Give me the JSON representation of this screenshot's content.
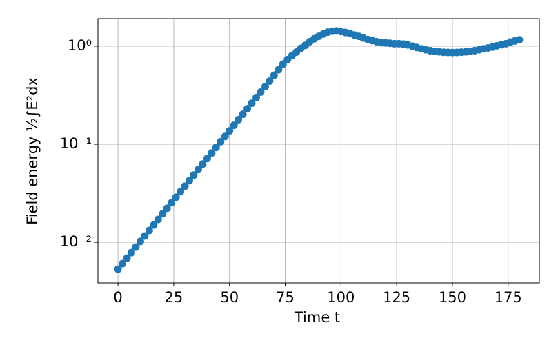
{
  "chart_data": {
    "type": "scatter",
    "xlabel": "Time t",
    "ylabel": "Field energy ½∫E²dx",
    "log_y": true,
    "grid": true,
    "color": "#1f77b4",
    "xlim": [
      -9,
      189
    ],
    "xticks": [
      0,
      25,
      50,
      75,
      100,
      125,
      150,
      175
    ],
    "ylim": [
      0.00385,
      1.91
    ],
    "yticks": [
      {
        "value": 0.01,
        "label": "10⁻²"
      },
      {
        "value": 0.1,
        "label": "10⁻¹"
      },
      {
        "value": 1,
        "label": "10⁰"
      }
    ],
    "x": [
      0,
      2,
      4,
      6,
      8,
      10,
      12,
      14,
      16,
      18,
      20,
      22,
      24,
      26,
      28,
      30,
      32,
      34,
      36,
      38,
      40,
      42,
      44,
      46,
      48,
      50,
      52,
      54,
      56,
      58,
      60,
      62,
      64,
      66,
      68,
      70,
      72,
      74,
      76,
      78,
      80,
      82,
      84,
      86,
      88,
      90,
      92,
      94,
      96,
      98,
      100,
      102,
      104,
      106,
      108,
      110,
      112,
      114,
      116,
      118,
      120,
      122,
      124,
      126,
      128,
      130,
      132,
      134,
      136,
      138,
      140,
      142,
      144,
      146,
      148,
      150,
      152,
      154,
      156,
      158,
      160,
      162,
      164,
      166,
      168,
      170,
      172,
      174,
      176,
      178,
      180
    ],
    "values": [
      0.00531,
      0.00605,
      0.00689,
      0.00784,
      0.00893,
      0.0102,
      0.0116,
      0.0132,
      0.015,
      0.0171,
      0.0195,
      0.0222,
      0.0253,
      0.0288,
      0.0328,
      0.0373,
      0.0425,
      0.0484,
      0.0551,
      0.0628,
      0.0715,
      0.0814,
      0.0927,
      0.106,
      0.12,
      0.137,
      0.156,
      0.178,
      0.202,
      0.23,
      0.262,
      0.299,
      0.34,
      0.387,
      0.441,
      0.506,
      0.576,
      0.656,
      0.73,
      0.8,
      0.87,
      0.95,
      1.02,
      1.11,
      1.19,
      1.26,
      1.33,
      1.39,
      1.42,
      1.43,
      1.41,
      1.38,
      1.35,
      1.3,
      1.26,
      1.21,
      1.17,
      1.14,
      1.11,
      1.09,
      1.08,
      1.07,
      1.06,
      1.06,
      1.05,
      1.03,
      1.0,
      0.97,
      0.94,
      0.92,
      0.9,
      0.885,
      0.875,
      0.867,
      0.863,
      0.862,
      0.863,
      0.868,
      0.875,
      0.886,
      0.9,
      0.92,
      0.94,
      0.96,
      0.98,
      1.01,
      1.035,
      1.06,
      1.1,
      1.13,
      1.16
    ]
  }
}
